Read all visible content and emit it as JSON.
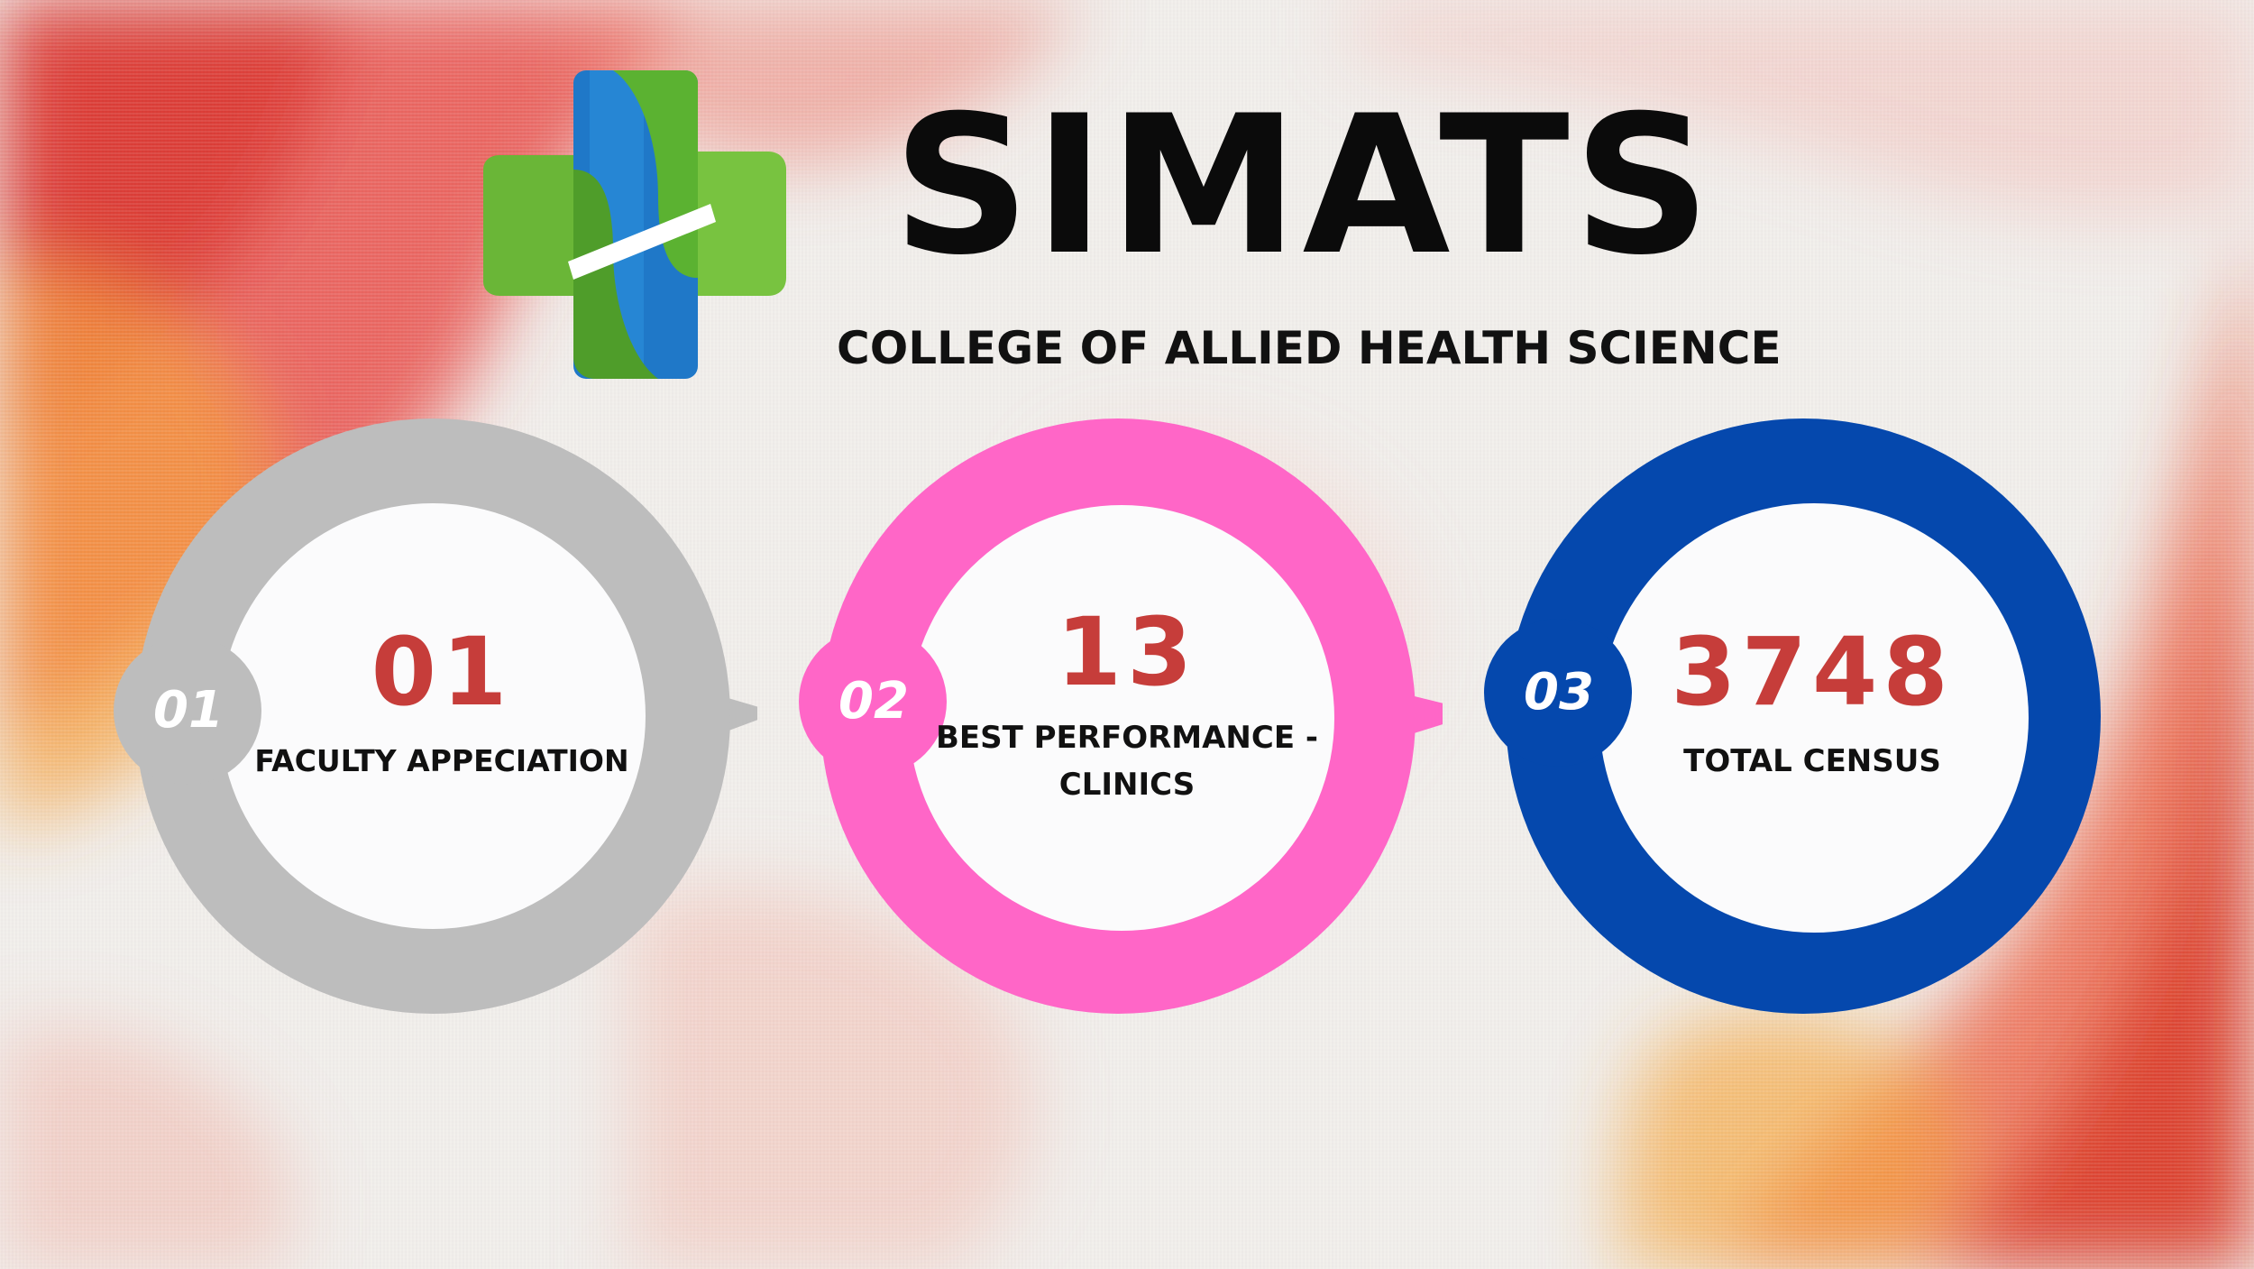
{
  "header": {
    "brand": "SIMATS",
    "subtitle": "COLLEGE OF ALLIED HEALTH SCIENCE",
    "logo_icon": "simats-cross-logo-icon"
  },
  "stats": [
    {
      "index": "01",
      "value": "01",
      "label": "FACULTY APPECIATION",
      "ring_color": "#bdbdbd"
    },
    {
      "index": "02",
      "value": "13",
      "label": "BEST PERFORMANCE - CLINICS",
      "ring_color": "#ff66c7"
    },
    {
      "index": "03",
      "value": "3748",
      "label": "TOTAL CENSUS",
      "ring_color": "#0548ad"
    }
  ],
  "colors": {
    "value_text": "#c63d3a",
    "inner_circle": "#fbfbfc",
    "logo_green": "#6fbe3a",
    "logo_blue": "#1f7fd0"
  }
}
